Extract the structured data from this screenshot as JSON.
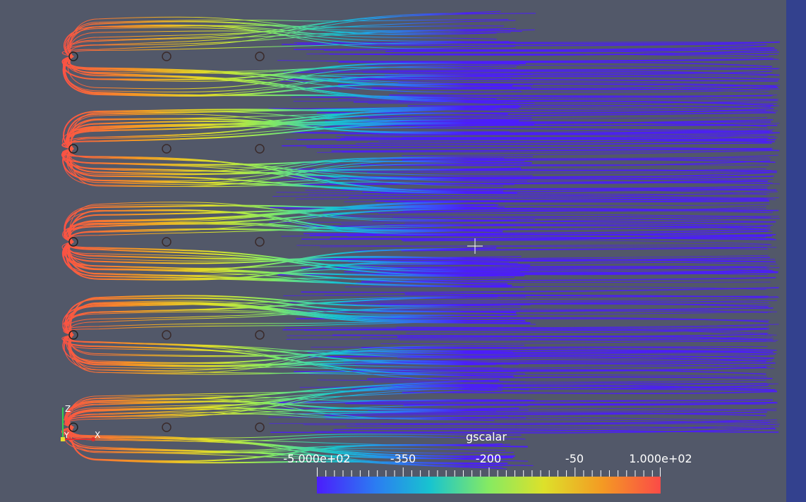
{
  "colorbar": {
    "title": "gscalar",
    "labels": [
      "-5.000e+02",
      "-350",
      "-200",
      "-50",
      "1.000e+02"
    ],
    "range": [
      -500,
      100
    ],
    "colors": [
      "#4b1dfc",
      "#2b7cf2",
      "#18c4cf",
      "#86ea62",
      "#dde12a",
      "#f49a23",
      "#fb4b47"
    ]
  },
  "axes": {
    "x_label": "X",
    "y_label": "Y",
    "z_label": "Z"
  },
  "colors": {
    "background": "#525869",
    "sidebar": "#33418e",
    "axis_x": "#e03030",
    "axis_y": "#e8e030",
    "axis_z": "#30d050"
  },
  "icons": [
    "crosshair-cursor-icon",
    "orientation-axes-icon"
  ]
}
